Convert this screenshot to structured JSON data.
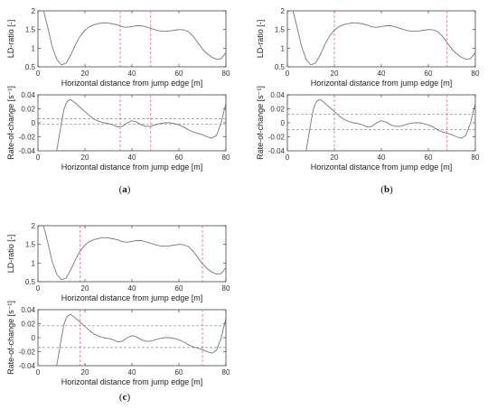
{
  "panels": [
    {
      "id": "a",
      "caption": "(a)",
      "caption_letter": "a"
    },
    {
      "id": "b",
      "caption": "(b)",
      "caption_letter": "b"
    },
    {
      "id": "c",
      "caption": "(c)",
      "caption_letter": "c"
    }
  ],
  "colors": {
    "curve": "#777777",
    "red_dash": "#e8546a",
    "gray_dash": "#888888",
    "axis": "#444444"
  },
  "chart_data": [
    {
      "panel": "a",
      "type": "line",
      "title": "",
      "xlabel": "Horizontal distance from jump edge [m]",
      "ylabel": "LD-ratio [-]",
      "xlim": [
        0,
        80
      ],
      "ylim": [
        0.5,
        2
      ],
      "xticks": [
        "0",
        "20",
        "40",
        "60",
        "80"
      ],
      "yticks": [
        "0.5",
        "1",
        "1.5",
        "2"
      ],
      "vlines": [
        35,
        48
      ],
      "hlines": [],
      "series": [
        {
          "x": [
            0,
            2,
            4,
            6,
            8,
            10,
            12,
            14,
            16,
            18,
            20,
            22,
            24,
            26,
            28,
            30,
            32,
            34,
            36,
            38,
            40,
            42,
            44,
            46,
            48,
            50,
            52,
            54,
            56,
            58,
            60,
            62,
            64,
            66,
            68,
            70,
            72,
            74,
            76,
            78,
            80
          ],
          "y": [
            2.1,
            2.1,
            1.6,
            1.05,
            0.7,
            0.55,
            0.6,
            0.82,
            1.1,
            1.33,
            1.48,
            1.58,
            1.63,
            1.66,
            1.68,
            1.67,
            1.65,
            1.62,
            1.57,
            1.56,
            1.58,
            1.6,
            1.6,
            1.57,
            1.53,
            1.49,
            1.46,
            1.45,
            1.46,
            1.48,
            1.5,
            1.49,
            1.44,
            1.32,
            1.15,
            0.98,
            0.85,
            0.76,
            0.7,
            0.72,
            0.88
          ]
        }
      ]
    },
    {
      "panel": "a",
      "type": "line",
      "title": "",
      "xlabel": "Horizontal distance from jump edge [m]",
      "ylabel": "Rate-of-change [s⁻¹]",
      "xlim": [
        0,
        80
      ],
      "ylim": [
        -0.04,
        0.04
      ],
      "xticks": [
        "0",
        "20",
        "40",
        "60",
        "80"
      ],
      "yticks": [
        "-0.04",
        "-0.02",
        "0",
        "0.02",
        "0.04"
      ],
      "vlines": [
        35,
        48
      ],
      "hlines": [
        0.006,
        -0.002
      ],
      "series": [
        {
          "x": [
            0,
            2,
            4,
            6,
            8,
            9,
            10,
            11,
            12,
            13,
            14,
            16,
            18,
            20,
            22,
            24,
            26,
            28,
            30,
            32,
            34,
            36,
            38,
            40,
            42,
            44,
            46,
            48,
            50,
            52,
            54,
            56,
            58,
            60,
            62,
            64,
            66,
            68,
            70,
            72,
            74,
            76,
            78,
            80
          ],
          "y": [
            -0.04,
            -0.04,
            -0.04,
            -0.04,
            -0.04,
            -0.02,
            0.0,
            0.018,
            0.028,
            0.032,
            0.033,
            0.028,
            0.022,
            0.016,
            0.01,
            0.005,
            0.002,
            0.0,
            -0.001,
            -0.003,
            -0.006,
            -0.005,
            0.0,
            0.003,
            0.001,
            -0.003,
            -0.005,
            -0.005,
            -0.003,
            -0.001,
            0.0,
            0.0,
            -0.001,
            -0.003,
            -0.006,
            -0.01,
            -0.013,
            -0.015,
            -0.017,
            -0.02,
            -0.022,
            -0.018,
            0.0,
            0.028
          ]
        }
      ]
    },
    {
      "panel": "b",
      "type": "line",
      "title": "",
      "xlabel": "Horizontal distance from jump edge [m]",
      "ylabel": "LD-ratio [-]",
      "xlim": [
        0,
        80
      ],
      "ylim": [
        0.5,
        2
      ],
      "xticks": [
        "0",
        "20",
        "40",
        "60",
        "80"
      ],
      "yticks": [
        "0.5",
        "1",
        "1.5",
        "2"
      ],
      "vlines": [
        20,
        68
      ],
      "hlines": [],
      "series": [
        {
          "x": [
            0,
            2,
            4,
            6,
            8,
            10,
            12,
            14,
            16,
            18,
            20,
            22,
            24,
            26,
            28,
            30,
            32,
            34,
            36,
            38,
            40,
            42,
            44,
            46,
            48,
            50,
            52,
            54,
            56,
            58,
            60,
            62,
            64,
            66,
            68,
            70,
            72,
            74,
            76,
            78,
            80
          ],
          "y": [
            2.1,
            2.1,
            1.6,
            1.05,
            0.7,
            0.55,
            0.6,
            0.82,
            1.1,
            1.33,
            1.48,
            1.58,
            1.63,
            1.66,
            1.68,
            1.67,
            1.65,
            1.62,
            1.57,
            1.56,
            1.58,
            1.6,
            1.6,
            1.57,
            1.53,
            1.49,
            1.46,
            1.45,
            1.46,
            1.48,
            1.5,
            1.49,
            1.44,
            1.32,
            1.15,
            0.98,
            0.85,
            0.76,
            0.7,
            0.72,
            0.88
          ]
        }
      ]
    },
    {
      "panel": "b",
      "type": "line",
      "title": "",
      "xlabel": "Horizontal distance from jump edge [m]",
      "ylabel": "Rate-of-change [s⁻¹]",
      "xlim": [
        0,
        80
      ],
      "ylim": [
        -0.04,
        0.04
      ],
      "xticks": [
        "0",
        "20",
        "40",
        "60",
        "80"
      ],
      "yticks": [
        "-0.04",
        "-0.02",
        "0",
        "0.02",
        "0.04"
      ],
      "vlines": [
        20,
        68
      ],
      "hlines": [
        0.012,
        -0.01
      ],
      "series": [
        {
          "x": [
            0,
            2,
            4,
            6,
            8,
            9,
            10,
            11,
            12,
            13,
            14,
            16,
            18,
            20,
            22,
            24,
            26,
            28,
            30,
            32,
            34,
            36,
            38,
            40,
            42,
            44,
            46,
            48,
            50,
            52,
            54,
            56,
            58,
            60,
            62,
            64,
            66,
            68,
            70,
            72,
            74,
            76,
            78,
            80
          ],
          "y": [
            -0.04,
            -0.04,
            -0.04,
            -0.04,
            -0.04,
            -0.02,
            0.0,
            0.018,
            0.028,
            0.032,
            0.033,
            0.028,
            0.022,
            0.016,
            0.01,
            0.005,
            0.002,
            0.0,
            -0.001,
            -0.003,
            -0.006,
            -0.005,
            0.0,
            0.003,
            0.001,
            -0.003,
            -0.005,
            -0.005,
            -0.003,
            -0.001,
            0.0,
            0.0,
            -0.001,
            -0.003,
            -0.006,
            -0.01,
            -0.013,
            -0.015,
            -0.017,
            -0.02,
            -0.022,
            -0.018,
            0.0,
            0.028
          ]
        }
      ]
    },
    {
      "panel": "c",
      "type": "line",
      "title": "",
      "xlabel": "Horizontal distance from jump edge [m]",
      "ylabel": "LD-ratio [-]",
      "xlim": [
        0,
        80
      ],
      "ylim": [
        0.5,
        2
      ],
      "xticks": [
        "0",
        "20",
        "40",
        "60",
        "80"
      ],
      "yticks": [
        "0.5",
        "1",
        "1.5",
        "2"
      ],
      "vlines": [
        18,
        70
      ],
      "hlines": [],
      "series": [
        {
          "x": [
            0,
            2,
            4,
            6,
            8,
            10,
            12,
            14,
            16,
            18,
            20,
            22,
            24,
            26,
            28,
            30,
            32,
            34,
            36,
            38,
            40,
            42,
            44,
            46,
            48,
            50,
            52,
            54,
            56,
            58,
            60,
            62,
            64,
            66,
            68,
            70,
            72,
            74,
            76,
            78,
            80
          ],
          "y": [
            2.1,
            2.1,
            1.6,
            1.05,
            0.7,
            0.55,
            0.6,
            0.82,
            1.1,
            1.33,
            1.48,
            1.58,
            1.63,
            1.66,
            1.68,
            1.67,
            1.65,
            1.62,
            1.57,
            1.56,
            1.58,
            1.6,
            1.6,
            1.57,
            1.53,
            1.49,
            1.46,
            1.45,
            1.46,
            1.48,
            1.5,
            1.49,
            1.44,
            1.32,
            1.15,
            0.98,
            0.85,
            0.76,
            0.7,
            0.72,
            0.88
          ]
        }
      ]
    },
    {
      "panel": "c",
      "type": "line",
      "title": "",
      "xlabel": "Horizontal distance from jump edge [m]",
      "ylabel": "Rate-of-change [s⁻¹]",
      "xlim": [
        0,
        80
      ],
      "ylim": [
        -0.04,
        0.04
      ],
      "xticks": [
        "0",
        "20",
        "40",
        "60",
        "80"
      ],
      "yticks": [
        "-0.04",
        "-0.02",
        "0",
        "0.02",
        "0.04"
      ],
      "vlines": [
        18,
        70
      ],
      "hlines": [
        0.017,
        -0.014
      ],
      "series": [
        {
          "x": [
            0,
            2,
            4,
            6,
            8,
            9,
            10,
            11,
            12,
            13,
            14,
            16,
            18,
            20,
            22,
            24,
            26,
            28,
            30,
            32,
            34,
            36,
            38,
            40,
            42,
            44,
            46,
            48,
            50,
            52,
            54,
            56,
            58,
            60,
            62,
            64,
            66,
            68,
            70,
            72,
            74,
            76,
            78,
            80
          ],
          "y": [
            -0.04,
            -0.04,
            -0.04,
            -0.04,
            -0.04,
            -0.02,
            0.0,
            0.018,
            0.028,
            0.032,
            0.033,
            0.028,
            0.022,
            0.016,
            0.01,
            0.005,
            0.002,
            0.0,
            -0.001,
            -0.003,
            -0.006,
            -0.005,
            0.0,
            0.003,
            0.001,
            -0.003,
            -0.005,
            -0.005,
            -0.003,
            -0.001,
            0.0,
            0.0,
            -0.001,
            -0.003,
            -0.006,
            -0.01,
            -0.013,
            -0.015,
            -0.017,
            -0.02,
            -0.022,
            -0.018,
            0.0,
            0.028
          ]
        }
      ]
    }
  ]
}
